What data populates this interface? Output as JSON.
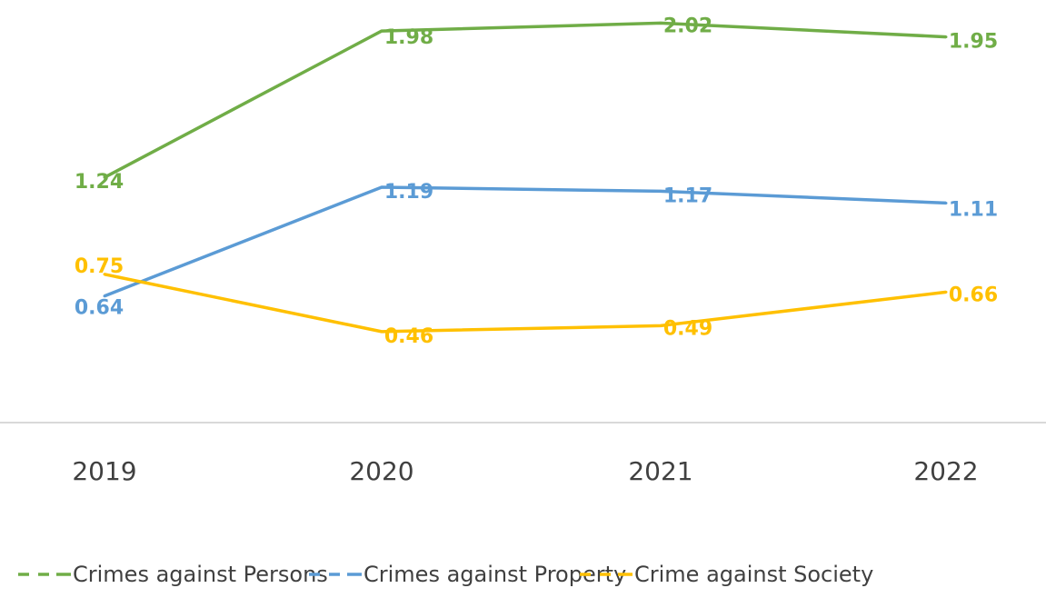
{
  "chart_data": {
    "type": "line",
    "categories": [
      "2019",
      "2020",
      "2021",
      "2022"
    ],
    "ylim": [
      0,
      2.1
    ],
    "grid": false,
    "legend_position": "bottom",
    "series": [
      {
        "name": "Crimes against Persons",
        "color": "#70ad47",
        "values": [
          1.24,
          1.98,
          2.02,
          1.95
        ],
        "labels": [
          "1.24",
          "1.98",
          "2.02",
          "1.95"
        ]
      },
      {
        "name": "Crimes against Property",
        "color": "#5b9bd5",
        "values": [
          0.64,
          1.19,
          1.17,
          1.11
        ],
        "labels": [
          "0.64",
          "1.19",
          "1.17",
          "1.11"
        ]
      },
      {
        "name": "Crime against Society",
        "color": "#ffc000",
        "values": [
          0.75,
          0.46,
          0.49,
          0.66
        ],
        "labels": [
          "0.75",
          "0.46",
          "0.49",
          "0.66"
        ]
      }
    ]
  }
}
